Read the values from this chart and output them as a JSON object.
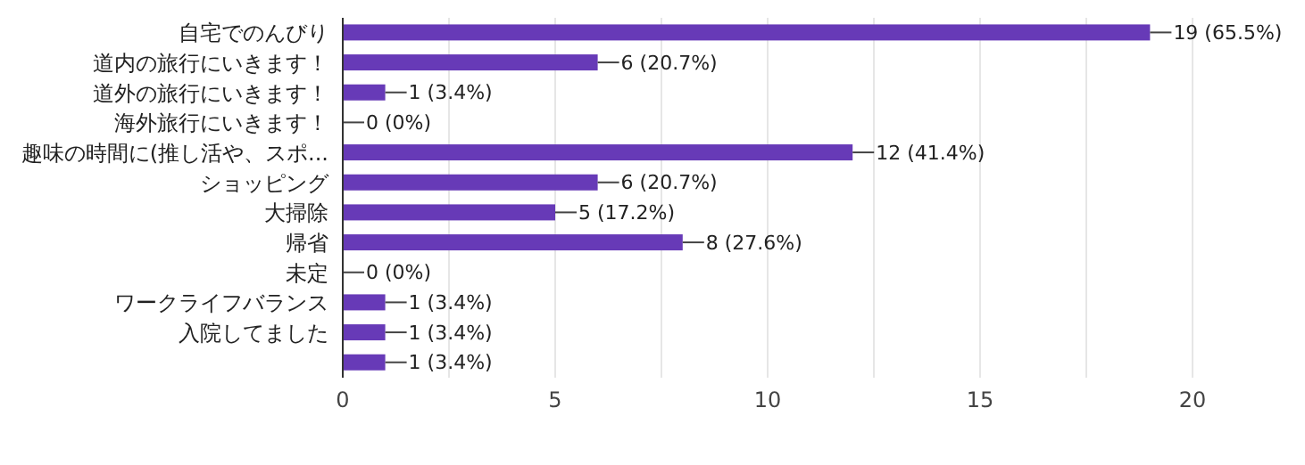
{
  "chart_data": {
    "type": "bar",
    "orientation": "horizontal",
    "categories": [
      "自宅でのんびり",
      "道内の旅行にいきます！",
      "道外の旅行にいきます！",
      "海外旅行にいきます！",
      "趣味の時間に(推し活や、スポ...",
      "ショッピング",
      "大掃除",
      "帰省",
      "未定",
      "ワークライフバランス",
      "入院してました",
      null
    ],
    "values": [
      19,
      6,
      1,
      0,
      12,
      6,
      5,
      8,
      0,
      1,
      1,
      1
    ],
    "value_labels": [
      "19 (65.5%)",
      "6 (20.7%)",
      "1 (3.4%)",
      "0 (0%)",
      "12 (41.4%)",
      "6 (20.7%)",
      "5 (17.2%)",
      "8 (27.6%)",
      "0 (0%)",
      "1 (3.4%)",
      "1 (3.4%)",
      "1 (3.4%)"
    ],
    "color": "#673ab7",
    "xlim": [
      0,
      20
    ],
    "xticks": [
      0,
      {
        "value": 2.5,
        "label": null
      },
      5,
      {
        "value": 7.5,
        "label": null
      },
      10,
      {
        "value": 12.5,
        "label": null
      },
      15,
      {
        "value": 17.5,
        "label": null
      },
      20
    ],
    "grid": "x"
  }
}
